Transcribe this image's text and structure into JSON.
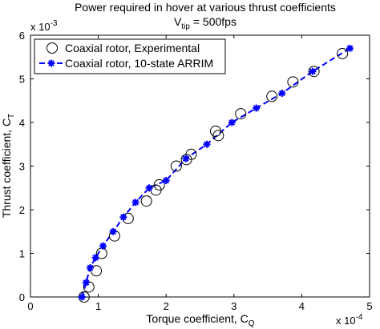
{
  "chart_data": {
    "type": "scatter",
    "title": "Power required in hover at various thrust coefficients",
    "subtitle": {
      "text": "V",
      "subscript": "tip",
      "suffix": " = 500fps"
    },
    "xlabel": {
      "text": "Torque coefficient, C",
      "subscript": "Q"
    },
    "ylabel": {
      "text": "Thrust coefficient, C",
      "subscript": "T"
    },
    "x_multiplier": {
      "base": "x 10",
      "exponent": "-4"
    },
    "y_multiplier": {
      "base": "x 10",
      "exponent": "-3"
    },
    "xlim": [
      0,
      5
    ],
    "ylim": [
      0,
      6
    ],
    "xticks": [
      0,
      1,
      2,
      3,
      4,
      5
    ],
    "yticks": [
      0,
      1,
      2,
      3,
      4,
      5,
      6
    ],
    "grid": false,
    "legend_position": "top-left",
    "series": [
      {
        "name": "Coaxial rotor, Experimental",
        "marker": "open-circle",
        "color": "#000000",
        "x": [
          0.79,
          0.86,
          0.97,
          1.05,
          1.24,
          1.44,
          1.71,
          1.85,
          1.9,
          2.15,
          2.3,
          2.37,
          2.73,
          2.77,
          3.1,
          3.56,
          3.87,
          4.18,
          4.6
        ],
        "y": [
          0.0,
          0.23,
          0.6,
          1.0,
          1.4,
          1.8,
          2.2,
          2.45,
          2.57,
          3.0,
          3.15,
          3.27,
          3.8,
          3.7,
          4.2,
          4.6,
          4.93,
          5.17,
          5.58
        ]
      },
      {
        "name": "Coaxial rotor, 10-state ARRIM",
        "marker": "asterisk",
        "line": "dashed",
        "color": "#0000ff",
        "x": [
          0.76,
          0.82,
          0.88,
          0.96,
          1.07,
          1.22,
          1.37,
          1.55,
          1.75,
          2.0,
          2.29,
          2.6,
          2.97,
          3.33,
          3.71,
          4.16,
          4.71
        ],
        "y": [
          0.0,
          0.33,
          0.67,
          0.9,
          1.17,
          1.5,
          1.83,
          2.17,
          2.5,
          2.67,
          3.17,
          3.5,
          4.0,
          4.33,
          4.67,
          5.17,
          5.7
        ]
      }
    ]
  }
}
